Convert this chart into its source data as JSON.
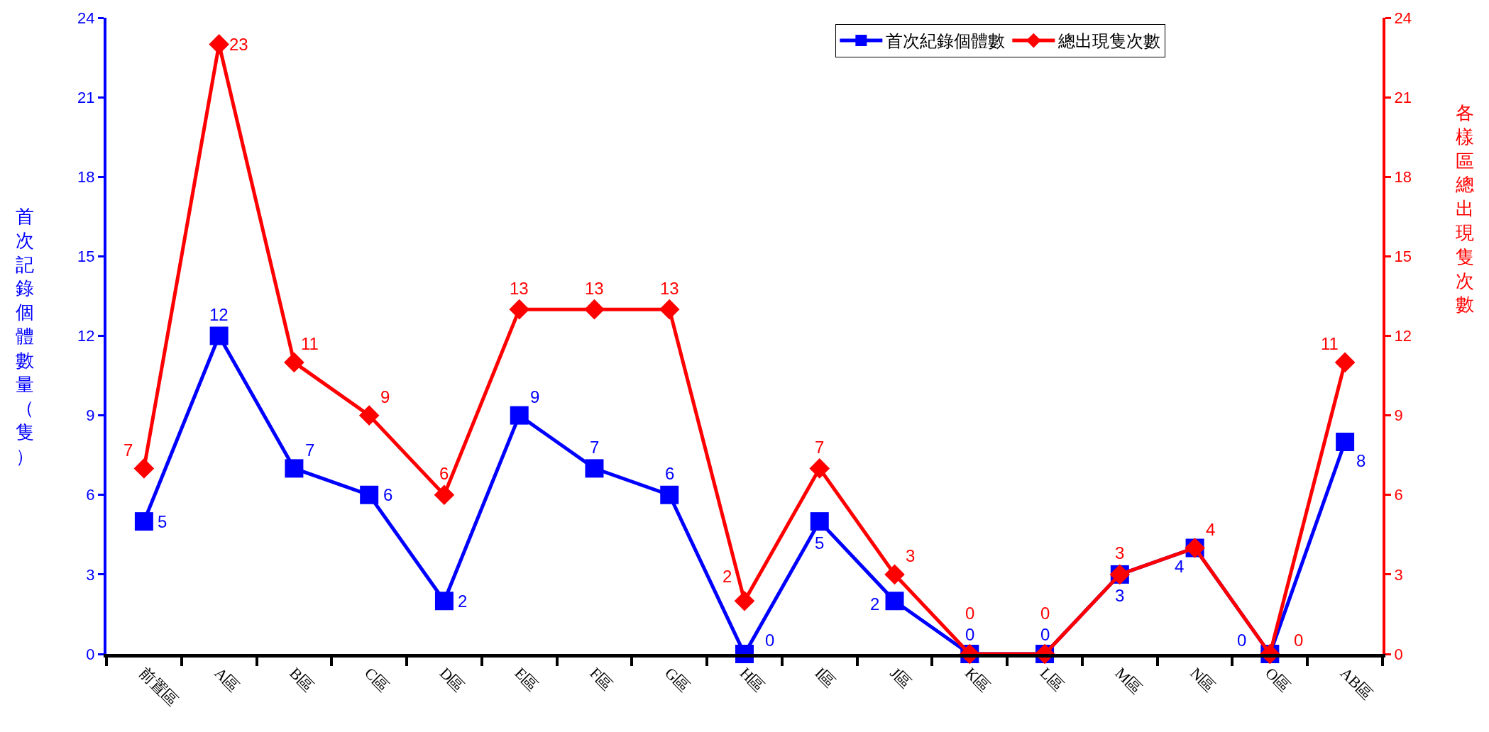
{
  "chart_data": {
    "type": "line",
    "categories": [
      "前置區",
      "A區",
      "B區",
      "C區",
      "D區",
      "E區",
      "F區",
      "G區",
      "H區",
      "I區",
      "J區",
      "K區",
      "L區",
      "M區",
      "N區",
      "O區",
      "AB區"
    ],
    "series": [
      {
        "name": "首次紀錄個體數",
        "color": "#0000ff",
        "marker": "square",
        "values": [
          5,
          12,
          7,
          6,
          2,
          9,
          7,
          6,
          0,
          5,
          2,
          0,
          0,
          3,
          4,
          0,
          8
        ]
      },
      {
        "name": "總出現隻次數",
        "color": "#ff0000",
        "marker": "diamond",
        "axis": "y2",
        "values": [
          7,
          23,
          11,
          9,
          6,
          13,
          13,
          13,
          2,
          7,
          3,
          0,
          0,
          3,
          4,
          0,
          11
        ]
      }
    ],
    "ylabel": "首次記錄個體數量（隻）",
    "y2label": "各樣區總出現隻次數",
    "ylim": [
      0,
      24
    ],
    "yticks": [
      0,
      3,
      6,
      9,
      12,
      15,
      18,
      21,
      24
    ],
    "y2lim": [
      0,
      24
    ],
    "y2ticks": [
      0,
      3,
      6,
      9,
      12,
      15,
      18,
      21,
      24
    ],
    "data_labels": true,
    "grid": false,
    "legend": "top right",
    "line_style": "solid"
  }
}
